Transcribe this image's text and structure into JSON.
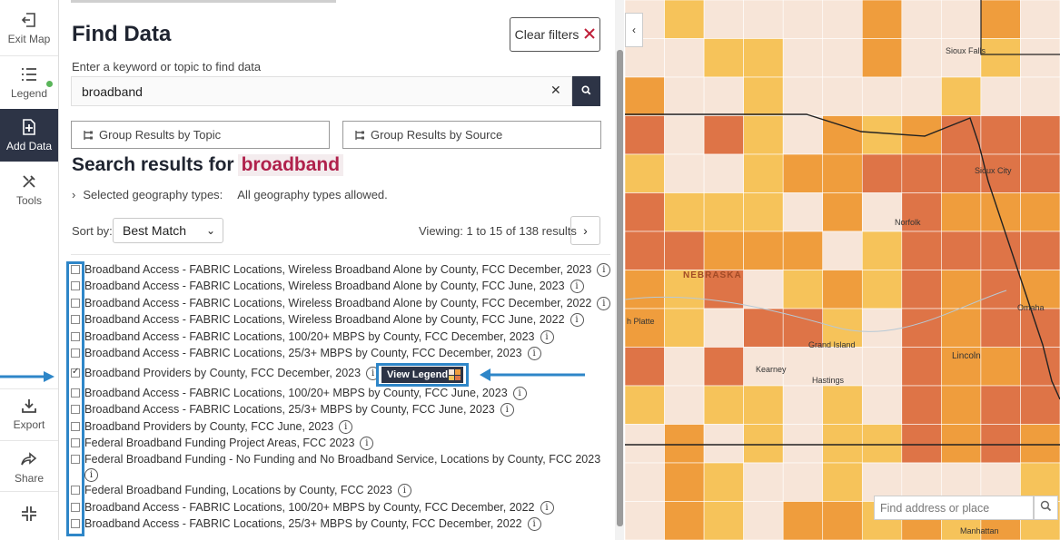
{
  "rail": {
    "exit_map": "Exit Map",
    "legend": "Legend",
    "add_data": "Add Data",
    "tools": "Tools",
    "export": "Export",
    "share": "Share"
  },
  "panel": {
    "title": "Find Data",
    "clear_filters": "Clear filters",
    "keyword_label": "Enter a keyword or topic to find data",
    "search_value": "broadband",
    "group_topic": "Group Results by Topic",
    "group_source": "Group Results by Source",
    "results_heading": "Search results for",
    "results_term": "broadband",
    "geo_label": "Selected geography types:",
    "geo_value": "All geography types allowed.",
    "sort_label": "Sort by:",
    "sort_value": "Best Match",
    "viewing": "Viewing: 1 to 15 of 138 results",
    "view_legend": "View Legend"
  },
  "results": [
    {
      "label": "Broadband Access - FABRIC Locations, Wireless Broadband Alone by County, FCC December, 2023",
      "checked": false
    },
    {
      "label": "Broadband Access - FABRIC Locations, Wireless Broadband Alone by County, FCC June, 2023",
      "checked": false
    },
    {
      "label": "Broadband Access - FABRIC Locations, Wireless Broadband Alone by County, FCC December, 2022",
      "checked": false
    },
    {
      "label": "Broadband Access - FABRIC Locations, Wireless Broadband Alone by County, FCC June, 2022",
      "checked": false
    },
    {
      "label": "Broadband Access - FABRIC Locations, 100/20+ MBPS by County, FCC December, 2023",
      "checked": false
    },
    {
      "label": "Broadband Access - FABRIC Locations, 25/3+ MBPS by County, FCC December, 2023",
      "checked": false
    },
    {
      "label": "Broadband Providers by County, FCC December, 2023",
      "checked": true
    },
    {
      "label": "Broadband Access - FABRIC Locations, 100/20+ MBPS by County, FCC June, 2023",
      "checked": false
    },
    {
      "label": "Broadband Access - FABRIC Locations, 25/3+ MBPS by County, FCC June, 2023",
      "checked": false
    },
    {
      "label": "Broadband Providers by County, FCC June, 2023",
      "checked": false
    },
    {
      "label": "Federal Broadband Funding Project Areas, FCC 2023",
      "checked": false
    },
    {
      "label": "Federal Broadband Funding - No Funding and No Broadband Service, Locations by County, FCC 2023",
      "checked": false
    },
    {
      "label": "Federal Broadband Funding, Locations by County, FCC 2023",
      "checked": false
    },
    {
      "label": "Broadband Access - FABRIC Locations, 100/20+ MBPS by County, FCC December, 2022",
      "checked": false
    },
    {
      "label": "Broadband Access - FABRIC Locations, 25/3+ MBPS by County, FCC December, 2022",
      "checked": false
    }
  ],
  "map": {
    "find_placeholder": "Find address or place",
    "labels": {
      "sioux_falls": "Sioux Falls",
      "sioux_city": "Sioux City",
      "norfolk": "Norfolk",
      "nebraska": "NEBRASKA",
      "north_platte": "h Platte",
      "grand_island": "Grand Island",
      "kearney": "Kearney",
      "hastings": "Hastings",
      "lincoln": "Lincoln",
      "omaha": "Omaha",
      "manhattan": "Manhattan"
    }
  },
  "colors": {
    "accent_dark": "#2d3446",
    "highlight_blue": "#2e86c8",
    "term_red": "#b0214c",
    "map_light": "#f7e5d8",
    "map_yellow": "#f6c35a",
    "map_orange": "#ef9d3d",
    "map_dark": "#de7447"
  }
}
